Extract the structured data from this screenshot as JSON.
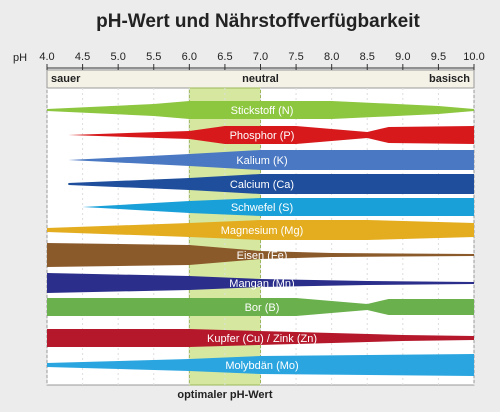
{
  "chart_data": {
    "type": "band",
    "title": "pH-Wert und Nährstoffverfügbarkeit",
    "xlabel": "pH",
    "xlim": [
      4,
      10
    ],
    "xticks": [
      {
        "value": 4,
        "label": "4.0"
      },
      4.5,
      {
        "value": 5,
        "label": "5.0"
      },
      5.5,
      {
        "value": 6,
        "label": "6.0"
      },
      6.5,
      {
        "value": 7,
        "label": "7.0"
      },
      7.5,
      {
        "value": 8,
        "label": "8.0"
      },
      8.5,
      {
        "value": 9,
        "label": "9.0"
      },
      9.5,
      {
        "value": 10,
        "label": "10.0"
      }
    ],
    "zones": [
      "sauer",
      "neutral",
      "basisch"
    ],
    "optimal_range": [
      6,
      7
    ],
    "optimal_label": "optimaler pH-Wert",
    "series": [
      {
        "name": "Stickstoff (N)",
        "color": "#8dc63f"
      },
      {
        "name": "Phosphor (P)",
        "color": "#d7191c"
      },
      {
        "name": "Kalium (K)",
        "color": "#4a78c2"
      },
      {
        "name": "Calcium (Ca)",
        "color": "#1f4e9c"
      },
      {
        "name": "Schwefel (S)",
        "color": "#1aa0d8"
      },
      {
        "name": "Magnesium (Mg)",
        "color": "#e3ad1f"
      },
      {
        "name": "Eisen (Fe)",
        "color": "#8b5a2b"
      },
      {
        "name": "Mangan (Mn)",
        "color": "#2b2e8a"
      },
      {
        "name": "Bor (B)",
        "color": "#6ab04c"
      },
      {
        "name": "Kupfer (Cu) / Zink (Zn)",
        "color": "#b5172b"
      },
      {
        "name": "Molybdän (Mo)",
        "color": "#2aa5e0"
      }
    ]
  }
}
